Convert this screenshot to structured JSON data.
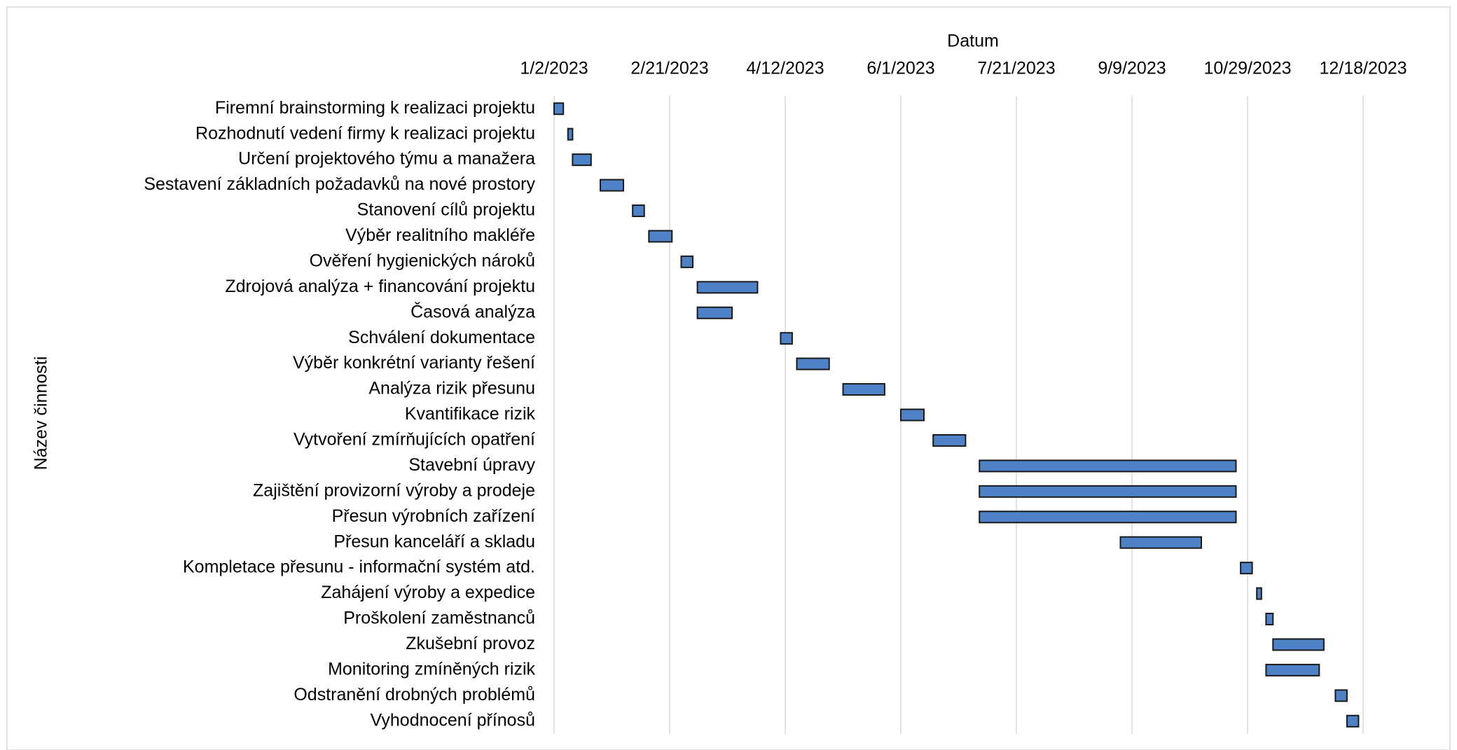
{
  "chart_data": {
    "type": "gantt",
    "x_axis_label": "Datum",
    "y_axis_label": "Název činnosti",
    "xlim": [
      "1/2/2023",
      "12/18/2023"
    ],
    "xticks": [
      "1/2/2023",
      "2/21/2023",
      "4/12/2023",
      "6/1/2023",
      "7/21/2023",
      "9/9/2023",
      "10/29/2023",
      "12/18/2023"
    ],
    "grid": true,
    "color": "#4f81c7",
    "categories": [
      "Firemní brainstorming k realizaci projektu",
      "Rozhodnutí vedení firmy k realizaci projektu",
      "Určení projektového týmu a manažera",
      "Sestavení základních požadavků na nové prostory",
      "Stanovení cílů projektu",
      "Výběr realitního makléře",
      "Ověření hygienických nároků",
      "Zdrojová analýza + financování projektu",
      "Časová analýza",
      "Schválení dokumentace",
      "Výběr konkrétní varianty řešení",
      "Analýza rizik přesunu",
      "Kvantifikace rizik",
      "Vytvoření zmírňujících opatření",
      "Stavební úpravy",
      "Zajištění provizorní výroby a prodeje",
      "Přesun výrobních zařízení",
      "Přesun kanceláří a skladu",
      "Kompletace přesunu - informační systém atd.",
      "Zahájení výroby a expedice",
      "Proškolení zaměstnanců",
      "Zkušební provoz",
      "Monitoring zmíněných rizik",
      "Odstranění drobných problémů",
      "Vyhodnocení přínosů"
    ],
    "start": [
      "1/2/2023",
      "1/8/2023",
      "1/10/2023",
      "1/22/2023",
      "2/5/2023",
      "2/12/2023",
      "2/26/2023",
      "3/5/2023",
      "3/5/2023",
      "4/10/2023",
      "4/17/2023",
      "5/7/2023",
      "6/1/2023",
      "6/15/2023",
      "7/5/2023",
      "7/5/2023",
      "7/5/2023",
      "9/4/2023",
      "10/26/2023",
      "11/2/2023",
      "11/6/2023",
      "11/9/2023",
      "11/6/2023",
      "12/6/2023",
      "12/11/2023"
    ],
    "end": [
      "1/6/2023",
      "1/10/2023",
      "1/18/2023",
      "2/1/2023",
      "2/10/2023",
      "2/22/2023",
      "3/3/2023",
      "3/31/2023",
      "3/20/2023",
      "4/15/2023",
      "5/1/2023",
      "5/25/2023",
      "6/11/2023",
      "6/29/2023",
      "10/24/2023",
      "10/24/2023",
      "10/24/2023",
      "10/9/2023",
      "10/31/2023",
      "11/4/2023",
      "11/9/2023",
      "12/1/2023",
      "11/29/2023",
      "12/11/2023",
      "12/16/2023"
    ]
  }
}
